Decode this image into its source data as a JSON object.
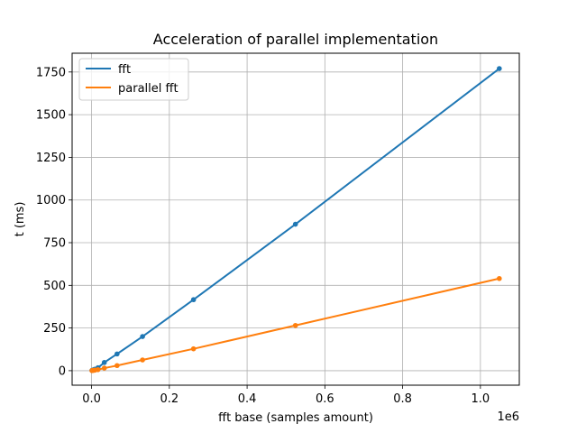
{
  "chart_data": {
    "type": "line",
    "title": "Acceleration of parallel implementation",
    "xlabel": "fft base (samples amount)",
    "ylabel": "t (ms)",
    "x_offset_label": "1e6",
    "xlim": [
      -0.05,
      1.1
    ],
    "ylim": [
      -85,
      1860
    ],
    "x_scale_factor": 1000000,
    "x_ticks": [
      0.0,
      0.2,
      0.4,
      0.6,
      0.8,
      1.0
    ],
    "x_tick_labels": [
      "0.0",
      "0.2",
      "0.4",
      "0.6",
      "0.8",
      "1.0"
    ],
    "y_ticks": [
      0,
      250,
      500,
      750,
      1000,
      1250,
      1500,
      1750
    ],
    "y_tick_labels": [
      "0",
      "250",
      "500",
      "750",
      "1000",
      "1250",
      "1500",
      "1750"
    ],
    "grid": true,
    "legend_position": "top-left",
    "x": [
      1024,
      2048,
      4096,
      8192,
      16384,
      32768,
      65536,
      131072,
      262144,
      524288,
      1048576
    ],
    "series": [
      {
        "name": "fft",
        "color": "#1f77b4",
        "values": [
          1.5,
          2.5,
          4.5,
          8.5,
          17,
          48,
          98,
          200,
          416,
          858,
          1770
        ]
      },
      {
        "name": "parallel fft",
        "color": "#ff7f0e",
        "values": [
          0.5,
          1,
          1.5,
          3,
          6,
          15,
          30,
          63,
          128,
          265,
          540
        ]
      }
    ]
  }
}
